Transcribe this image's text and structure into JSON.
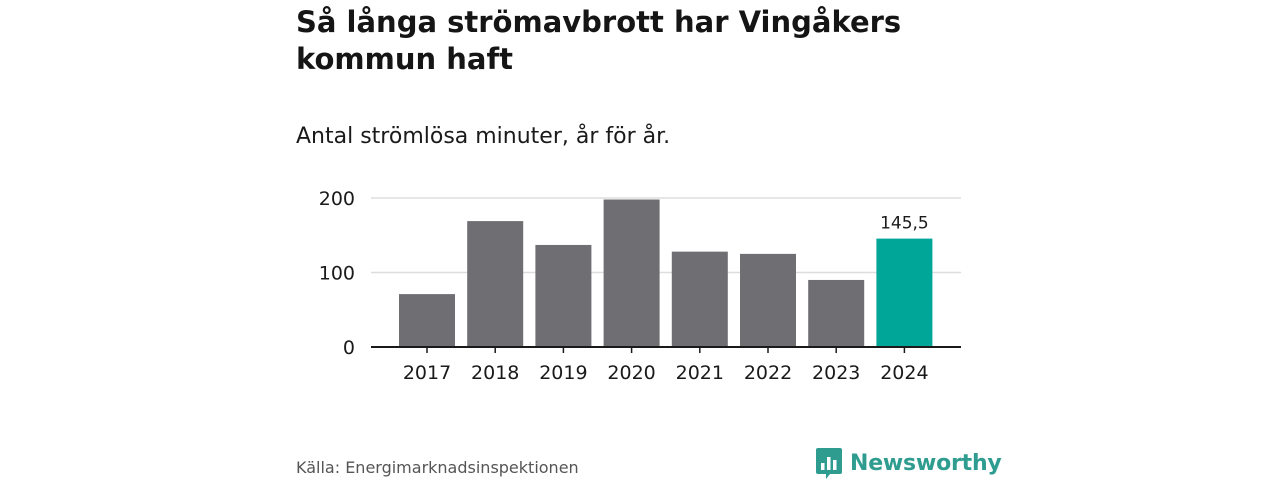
{
  "title": "Så långa strömavbrott har Vingåkers kommun haft",
  "subtitle": "Antal strömlösa minuter, år för år.",
  "source": "Källa: Energimarknadsinspektionen",
  "brand": {
    "name": "Newsworthy",
    "color": "#2f9c90",
    "icon": "newsworthy-logo-icon"
  },
  "colors": {
    "bar": "#6f6e73",
    "highlight": "#00a698",
    "grid": "#dddddd",
    "axis": "#1a1a1a"
  },
  "chart_data": {
    "type": "bar",
    "title": "Så långa strömavbrott har Vingåkers kommun haft",
    "subtitle": "Antal strömlösa minuter, år för år.",
    "categories": [
      "2017",
      "2018",
      "2019",
      "2020",
      "2021",
      "2022",
      "2023",
      "2024"
    ],
    "values": [
      71,
      169,
      137,
      198,
      128,
      125,
      90,
      145.5
    ],
    "highlight_index": 7,
    "data_labels": [
      {
        "index": 7,
        "text": "145,5"
      }
    ],
    "yticks": [
      0,
      100,
      200
    ],
    "ytick_labels": [
      "0",
      "100",
      "200"
    ],
    "ylim": [
      0,
      200
    ],
    "xlabel": "",
    "ylabel": "",
    "grid": true
  }
}
